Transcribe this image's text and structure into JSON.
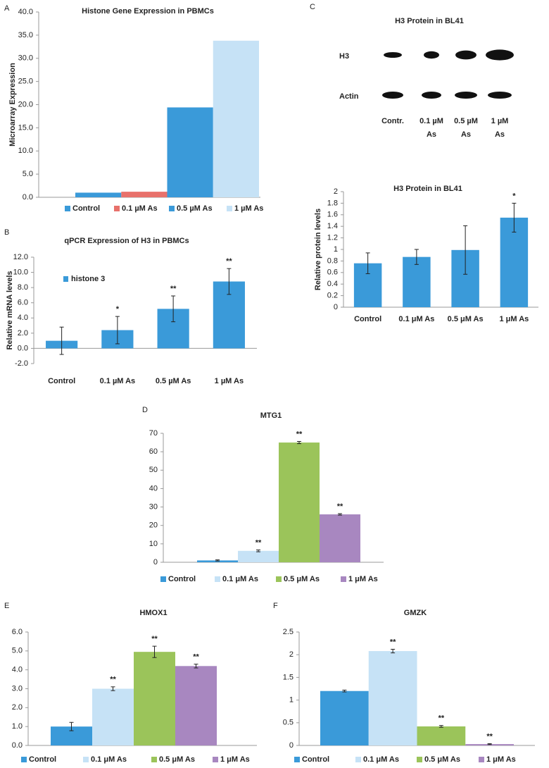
{
  "chart_data": [
    {
      "type": "bar",
      "panel_label": "A",
      "title": "Histone Gene Expression in PBMCs",
      "y_label": "Microarray Expression",
      "categories": [
        "Control",
        "0.1 µM As",
        "0.5 µM As",
        "1 µM As"
      ],
      "values": [
        1.0,
        1.2,
        19.4,
        33.8
      ],
      "colors": [
        "#3a9ad9",
        "#e8716b",
        "#3a9ad9",
        "#c6e2f6"
      ],
      "legend": "bottom",
      "ylim": [
        0,
        40
      ],
      "yticks": [
        {
          "value": 0,
          "label": "0.0"
        },
        {
          "value": 5,
          "label": "5.0"
        },
        {
          "value": 10,
          "label": "10.0"
        },
        {
          "value": 15,
          "label": "15.0"
        },
        {
          "value": 20,
          "label": "20.0"
        },
        {
          "value": 25,
          "label": "25.0"
        },
        {
          "value": 30,
          "label": "30.0"
        },
        {
          "value": 35,
          "label": "35.0"
        },
        {
          "value": 40,
          "label": "40.0"
        }
      ]
    },
    {
      "type": "bar",
      "panel_label": "B",
      "title": "qPCR Expression of H3 in PBMCs",
      "y_label": "Relative mRNA levels",
      "categories": [
        "Control",
        "0.1 µM As",
        "0.5 µM As",
        "1 µM As"
      ],
      "series": [
        {
          "name": "histone 3",
          "color": "#3a9ad9",
          "values": [
            1.0,
            2.4,
            5.2,
            8.8
          ],
          "errors": [
            1.8,
            1.8,
            1.7,
            1.7
          ]
        }
      ],
      "annotations": [
        null,
        "*",
        "**",
        "**"
      ],
      "legend": "upper left",
      "ylim": [
        -2,
        12
      ],
      "yticks": [
        {
          "value": -2,
          "label": "-2.0"
        },
        {
          "value": 0,
          "label": "0.0"
        },
        {
          "value": 2,
          "label": "2.0"
        },
        {
          "value": 4,
          "label": "4.0"
        },
        {
          "value": 6,
          "label": "6.0"
        },
        {
          "value": 8,
          "label": "8.0"
        },
        {
          "value": 10,
          "label": "10.0"
        },
        {
          "value": 12,
          "label": "12.0"
        }
      ]
    },
    {
      "type": "blot",
      "panel_label": "C",
      "title": "H3 Protein in BL41",
      "rows": [
        "H3",
        "Actin"
      ],
      "lanes": [
        [
          "Contr."
        ],
        [
          "0.1 µM",
          "As"
        ],
        [
          "0.5 µM",
          "As"
        ],
        [
          "1 µM",
          "As"
        ]
      ]
    },
    {
      "type": "bar",
      "title": "H3 Protein in BL41",
      "y_label": "Relative protein levels",
      "categories": [
        "Control",
        "0.1 μM As",
        "0.5 μM As",
        "1 μM As"
      ],
      "series": [
        {
          "color": "#3a9ad9",
          "values": [
            0.76,
            0.87,
            0.99,
            1.55
          ],
          "errors": [
            0.18,
            0.13,
            0.42,
            0.25
          ]
        }
      ],
      "annotations": [
        null,
        null,
        null,
        "*"
      ],
      "ylim": [
        0,
        2
      ],
      "yticks": [
        0,
        0.2,
        0.4,
        0.6,
        0.8,
        1,
        1.2,
        1.4,
        1.6,
        1.8,
        2
      ]
    },
    {
      "type": "bar",
      "panel_label": "D",
      "title": "MTG1",
      "categories": [
        "Control",
        "0.1 μM As",
        "0.5 μM As",
        "1 μM As"
      ],
      "values": [
        1,
        6.2,
        65,
        26
      ],
      "errors": [
        0.3,
        0.5,
        0.6,
        0.4
      ],
      "colors": [
        "#3a9ad9",
        "#c6e2f6",
        "#9bc45a",
        "#a887c0"
      ],
      "annotations": [
        null,
        "**",
        "**",
        "**"
      ],
      "legend": "bottom",
      "ylim": [
        0,
        70
      ],
      "yticks": [
        0,
        10,
        20,
        30,
        40,
        50,
        60,
        70
      ]
    },
    {
      "type": "bar",
      "panel_label": "E",
      "title": "HMOX1",
      "categories": [
        "Control",
        "0.1 μM As",
        "0.5 μM As",
        "1 μM As"
      ],
      "values": [
        1.0,
        3.0,
        4.95,
        4.2
      ],
      "errors": [
        0.22,
        0.1,
        0.3,
        0.1
      ],
      "colors": [
        "#3a9ad9",
        "#c6e2f6",
        "#9bc45a",
        "#a887c0"
      ],
      "annotations": [
        null,
        "**",
        "**",
        "**"
      ],
      "legend": "bottom",
      "ylim": [
        0,
        6
      ],
      "yticks": [
        {
          "value": 0,
          "label": "0.0"
        },
        {
          "value": 1,
          "label": "1.0"
        },
        {
          "value": 2,
          "label": "2.0"
        },
        {
          "value": 3,
          "label": "3.0"
        },
        {
          "value": 4,
          "label": "4.0"
        },
        {
          "value": 5,
          "label": "5.0"
        },
        {
          "value": 6,
          "label": "6.0"
        }
      ]
    },
    {
      "type": "bar",
      "panel_label": "F",
      "title": "GMZK",
      "categories": [
        "Control",
        "0.1 μM As",
        "0.5 μM As",
        "1 μM As"
      ],
      "values": [
        1.2,
        2.08,
        0.42,
        0.03
      ],
      "errors": [
        0.02,
        0.04,
        0.02,
        0.01
      ],
      "colors": [
        "#3a9ad9",
        "#c6e2f6",
        "#9bc45a",
        "#a887c0"
      ],
      "annotations": [
        null,
        "**",
        "**",
        "**"
      ],
      "legend": "bottom",
      "ylim": [
        0,
        2.5
      ],
      "yticks": [
        0,
        0.5,
        1,
        1.5,
        2,
        2.5
      ]
    }
  ]
}
